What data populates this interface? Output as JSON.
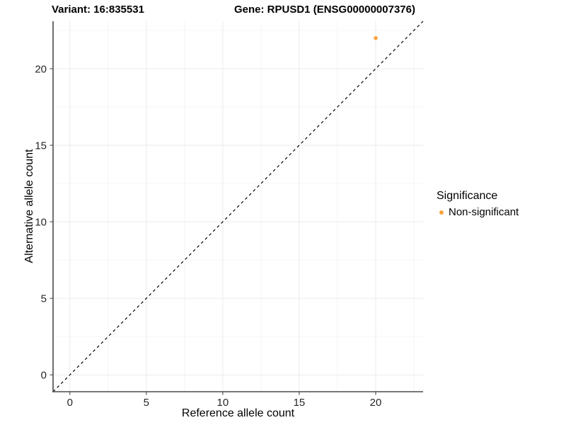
{
  "chart_data": {
    "type": "scatter",
    "title_left": "Variant: 16:835531",
    "title_right": "Gene: RPUSD1 (ENSG00000007376)",
    "xlabel": "Reference allele count",
    "ylabel": "Alternative allele count",
    "xlim": [
      -1.1,
      23.1
    ],
    "ylim": [
      -1.1,
      23.1
    ],
    "xticks": [
      0,
      5,
      10,
      15,
      20
    ],
    "yticks": [
      0,
      5,
      10,
      15,
      20
    ],
    "xminor": [
      2.5,
      7.5,
      12.5,
      17.5,
      22.5
    ],
    "yminor": [
      2.5,
      7.5,
      12.5,
      17.5,
      22.5
    ],
    "grid": true,
    "points": [
      {
        "x": 20,
        "y": 22,
        "series": "Non-significant"
      }
    ],
    "identity_line": {
      "style": "dashed",
      "equation": "y = x",
      "from": [
        -1.1,
        -1.1
      ],
      "to": [
        23.1,
        23.1
      ]
    },
    "legend": {
      "title": "Significance",
      "position": "right",
      "entries": [
        {
          "label": "Non-significant",
          "color": "#FAA43C",
          "marker": "circle"
        }
      ]
    },
    "colors": {
      "point": "#FAA43C",
      "axis_line": "#4a4a4a",
      "grid_major": "#EBEBEB",
      "grid_minor": "#F5F5F5",
      "dashed_line": "#000000",
      "tick_text": "#262626"
    }
  }
}
